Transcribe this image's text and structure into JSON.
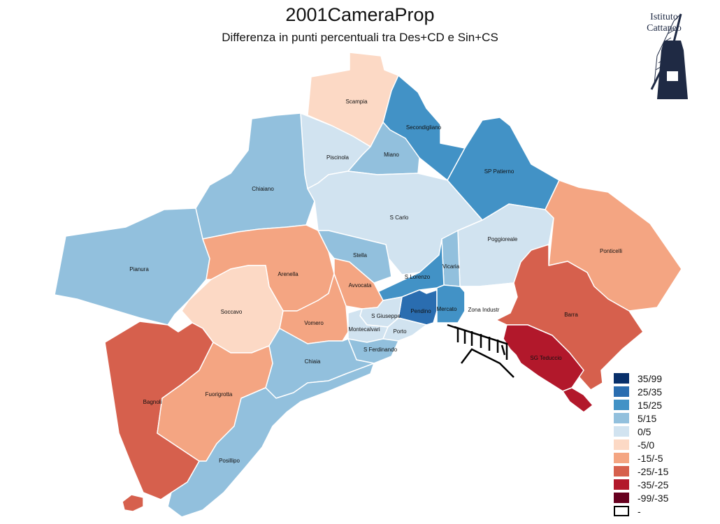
{
  "title": "2001CameraProp",
  "subtitle": "Differenza in punti percentuali tra Des+CD e Sin+CS",
  "logo": {
    "line1": "Istituto",
    "line2": "Cattaneo",
    "icon": "windmill-icon"
  },
  "colors": {
    "c35_99": "#08306b",
    "c25_35": "#2a6db0",
    "c15_25": "#4292c6",
    "c5_15": "#92c0dd",
    "c0_5": "#d1e3f0",
    "m5_0": "#fcd9c5",
    "m15_5": "#f4a582",
    "m25_15": "#d6604d",
    "m35_25": "#b2182b",
    "m99_35": "#67001f",
    "none": "#ffffff",
    "harbor": "#000000"
  },
  "legend": [
    {
      "label": "35/99",
      "color": "#08306b"
    },
    {
      "label": "25/35",
      "color": "#2a6db0"
    },
    {
      "label": "15/25",
      "color": "#4292c6"
    },
    {
      "label": "5/15",
      "color": "#92c0dd"
    },
    {
      "label": "0/5",
      "color": "#d1e3f0"
    },
    {
      "label": "-5/0",
      "color": "#fcd9c5"
    },
    {
      "label": "-15/-5",
      "color": "#f4a582"
    },
    {
      "label": "-25/-15",
      "color": "#d6604d"
    },
    {
      "label": "-35/-25",
      "color": "#b2182b"
    },
    {
      "label": "-99/-35",
      "color": "#67001f"
    },
    {
      "label": "-",
      "color": "#ffffff"
    }
  ],
  "districts": [
    {
      "name": "Scampia",
      "class": "-5/0"
    },
    {
      "name": "Secondigliano",
      "class": "15/25"
    },
    {
      "name": "Piscinola",
      "class": "0/5"
    },
    {
      "name": "Miano",
      "class": "5/15"
    },
    {
      "name": "SP Patierno",
      "class": "15/25"
    },
    {
      "name": "Chiaiano",
      "class": "5/15"
    },
    {
      "name": "S Carlo",
      "class": "0/5"
    },
    {
      "name": "Poggioreale",
      "class": "0/5"
    },
    {
      "name": "Ponticelli",
      "class": "-15/-5"
    },
    {
      "name": "Pianura",
      "class": "5/15"
    },
    {
      "name": "Arenella",
      "class": "-15/-5"
    },
    {
      "name": "Stella",
      "class": "5/15"
    },
    {
      "name": "Vicaria",
      "class": "5/15"
    },
    {
      "name": "S Lorenzo",
      "class": "15/25"
    },
    {
      "name": "Avvocata",
      "class": "-15/-5"
    },
    {
      "name": "Soccavo",
      "class": "-5/0"
    },
    {
      "name": "Pendino",
      "class": "25/35"
    },
    {
      "name": "Mercato",
      "class": "15/25"
    },
    {
      "name": "Zona Industr",
      "class": "-"
    },
    {
      "name": "S Giuseppe",
      "class": "0/5"
    },
    {
      "name": "Vomero",
      "class": "-15/-5"
    },
    {
      "name": "Montecalvari",
      "class": "0/5"
    },
    {
      "name": "Porto",
      "class": "0/5"
    },
    {
      "name": "Barra",
      "class": "-25/-15"
    },
    {
      "name": "S Ferdinando",
      "class": "5/15"
    },
    {
      "name": "SG Teduccio",
      "class": "-35/-25"
    },
    {
      "name": "Chiaia",
      "class": "5/15"
    },
    {
      "name": "Bagnoli",
      "class": "-25/-15"
    },
    {
      "name": "Fuorigrotta",
      "class": "-15/-5"
    },
    {
      "name": "Posillipo",
      "class": "5/15"
    }
  ]
}
